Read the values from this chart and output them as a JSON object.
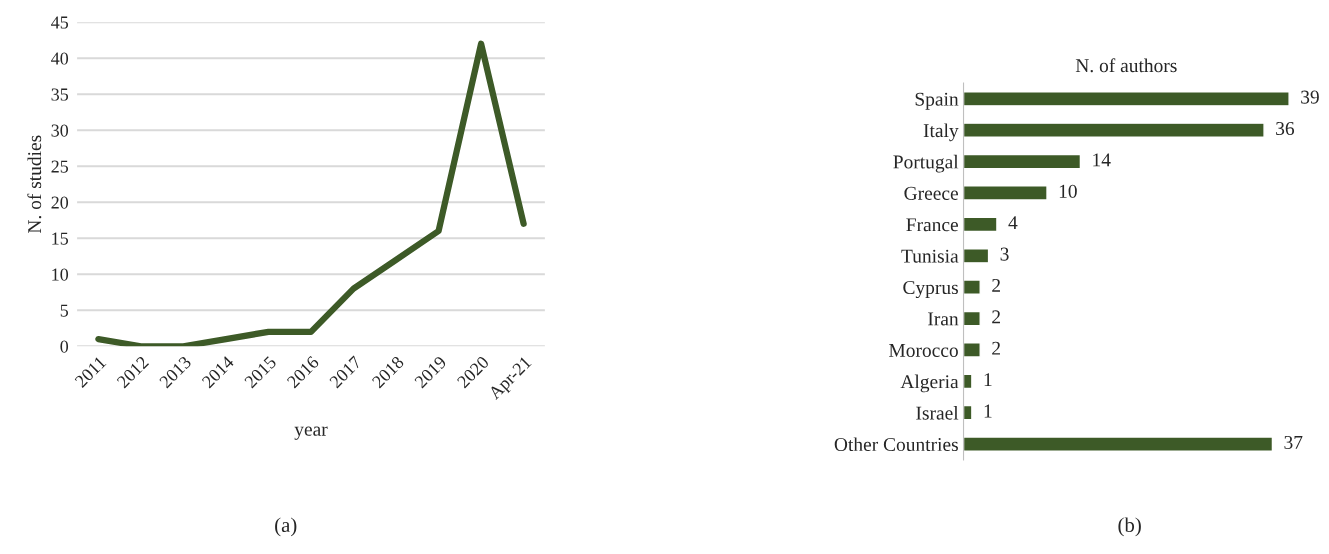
{
  "chart_data": [
    {
      "type": "line",
      "xlabel": "year",
      "ylabel": "N. of studies",
      "categories": [
        "2011",
        "2012",
        "2013",
        "2014",
        "2015",
        "2016",
        "2017",
        "2018",
        "2019",
        "2020",
        "Apr-21"
      ],
      "series": [
        {
          "color": "#3d5a27",
          "values": [
            1,
            0,
            0,
            1,
            2,
            2,
            8,
            12,
            16,
            42,
            17
          ]
        }
      ],
      "ylim": [
        0,
        45
      ],
      "yticks": [
        0,
        5,
        10,
        15,
        20,
        25,
        30,
        35,
        40,
        45
      ],
      "grid": "y",
      "marker": "none",
      "line_style": "solid",
      "annotations": [
        "(a)"
      ]
    },
    {
      "type": "bar",
      "orientation": "horizontal",
      "title": "N. of authors",
      "categories": [
        "Spain",
        "Italy",
        "Portugal",
        "Greece",
        "France",
        "Tunisia",
        "Cyprus",
        "Iran",
        "Morocco",
        "Algeria",
        "Israel",
        "Other Countries"
      ],
      "series": [
        {
          "color": "#3d5a27",
          "values": [
            39,
            36,
            14,
            10,
            4,
            3,
            2,
            2,
            2,
            1,
            1,
            37
          ]
        }
      ],
      "data_labels": true,
      "tick_labels": "y",
      "annotations": [
        "(b)"
      ]
    }
  ]
}
